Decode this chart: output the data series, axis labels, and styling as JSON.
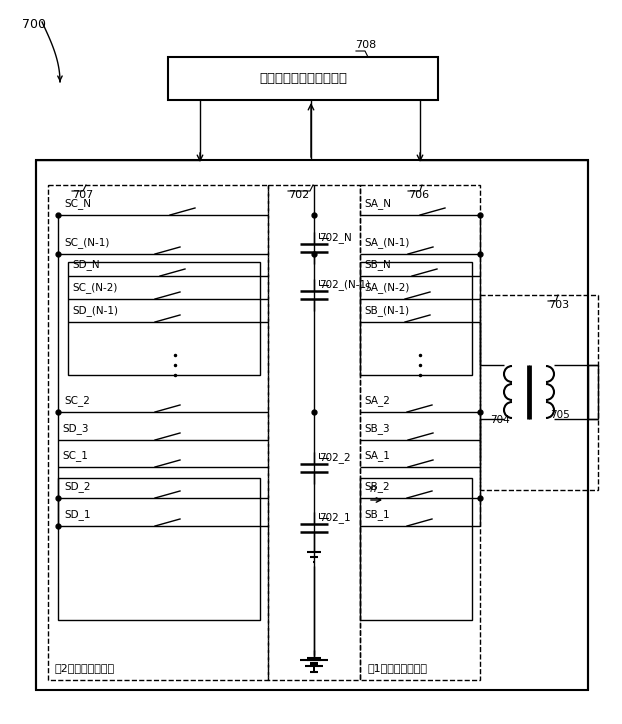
{
  "bg_color": "#ffffff",
  "label_700": "700",
  "label_708": "708",
  "label_707": "707",
  "label_702": "702",
  "label_706": "706",
  "label_703": "703",
  "label_704": "704",
  "label_705": "705",
  "label_702_N": "702_N",
  "label_702_N1": "702_(N-1)",
  "label_702_2": "702_2",
  "label_702_1": "702_1",
  "box708_text": "検出および制御ユニット",
  "label_sw2": "第2スイッチアレイ",
  "label_sw1": "第1スイッチアレイ",
  "sc_labels": [
    "SC_N",
    "SC_(N-1)",
    "SD_N",
    "SC_(N-2)",
    "SD_(N-1)",
    "SC_2",
    "SD_3",
    "SC_1",
    "SD_2",
    "SD_1"
  ],
  "sa_labels": [
    "SA_N",
    "SA_(N-1)",
    "SB_N",
    "SA_(N-2)",
    "SB_(N-1)",
    "SA_2",
    "SB_3",
    "SA_1",
    "SB_2",
    "SB_1"
  ]
}
